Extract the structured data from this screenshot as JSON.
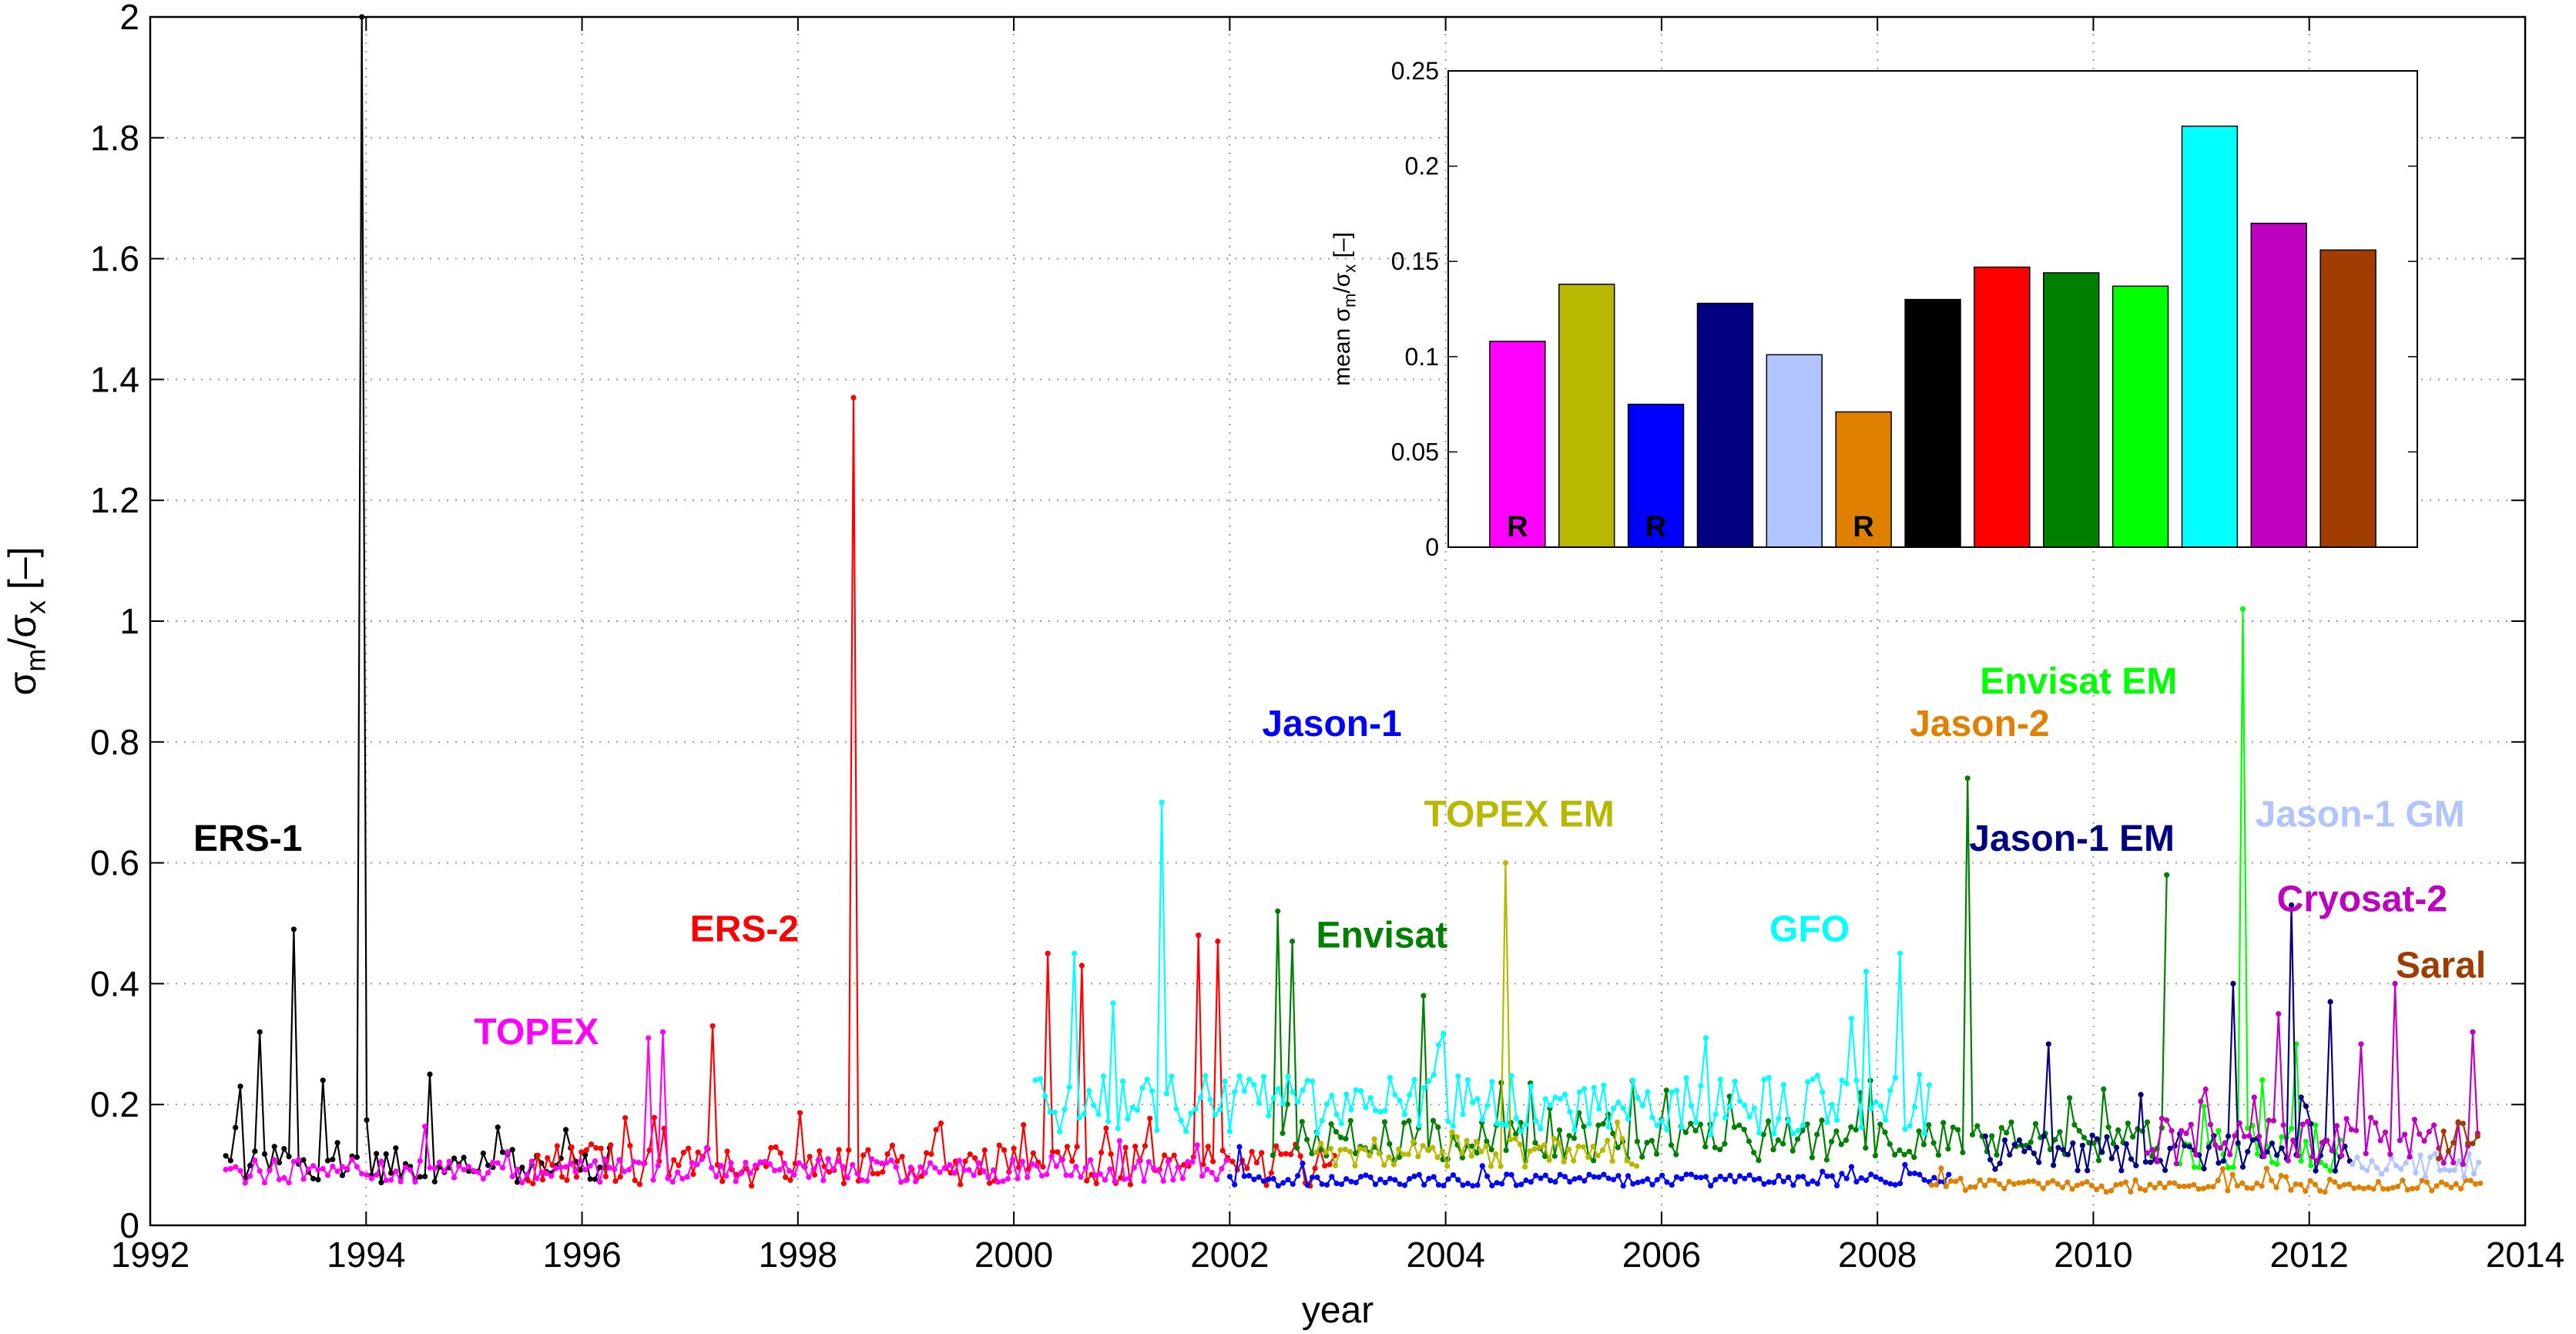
{
  "chart_data": [
    {
      "id": "main",
      "type": "line",
      "title": "",
      "xlabel": "year",
      "ylabel_parts": {
        "base": "σ",
        "sub1": "m",
        "slash": "/σ",
        "sub2": "x",
        "unit": " [–]"
      },
      "xlim": [
        1992,
        2014
      ],
      "ylim": [
        0,
        2
      ],
      "xticks": [
        1992,
        1994,
        1996,
        1998,
        2000,
        2002,
        2004,
        2006,
        2008,
        2010,
        2012,
        2014
      ],
      "xtick_labels": [
        "1992",
        "1994",
        "1996",
        "1998",
        "2000",
        "2002",
        "2004",
        "2006",
        "2008",
        "2010",
        "2012",
        "2014"
      ],
      "yticks": [
        0,
        0.2,
        0.4,
        0.6,
        0.8,
        1,
        1.2,
        1.4,
        1.6,
        1.8,
        2
      ],
      "ytick_labels": [
        "0",
        "0.2",
        "0.4",
        "0.6",
        "0.8",
        "1",
        "1.2",
        "1.4",
        "1.6",
        "1.8",
        "2"
      ],
      "grid": true,
      "series": [
        {
          "name": "ERS-1",
          "color": "#000000",
          "start": 1992.7,
          "end": 1996.3,
          "baseline": 0.1,
          "noise": 0.03,
          "spikes": [
            [
              1992.85,
              0.23
            ],
            [
              1993.0,
              0.32
            ],
            [
              1993.35,
              0.49
            ],
            [
              1993.6,
              0.24
            ],
            [
              1993.95,
              2.0
            ],
            [
              1994.6,
              0.25
            ]
          ]
        },
        {
          "name": "ERS-2",
          "color": "#ff0000",
          "start": 1995.5,
          "end": 2003.0,
          "baseline": 0.1,
          "noise": 0.035,
          "spikes": [
            [
              1997.2,
              0.33
            ],
            [
              1998.5,
              1.37
            ],
            [
              2000.3,
              0.45
            ],
            [
              2000.65,
              0.43
            ],
            [
              2001.7,
              0.48
            ],
            [
              2001.9,
              0.47
            ]
          ]
        },
        {
          "name": "TOPEX",
          "color": "#ff00ff",
          "start": 1992.7,
          "end": 2002.0,
          "baseline": 0.09,
          "noise": 0.02,
          "spikes": [
            [
              1996.6,
              0.31
            ],
            [
              1996.75,
              0.32
            ]
          ]
        },
        {
          "name": "Jason-1",
          "color": "#0000ff",
          "start": 2002.0,
          "end": 2008.7,
          "baseline": 0.075,
          "noise": 0.01,
          "spikes": [
            [
              2002.1,
              0.13
            ]
          ]
        },
        {
          "name": "Envisat",
          "color": "#008000",
          "start": 2002.4,
          "end": 2010.7,
          "baseline": 0.14,
          "noise": 0.035,
          "spikes": [
            [
              2002.45,
              0.52
            ],
            [
              2002.6,
              0.47
            ],
            [
              2003.8,
              0.38
            ],
            [
              2008.85,
              0.74
            ],
            [
              2010.7,
              0.58
            ]
          ]
        },
        {
          "name": "TOPEX EM",
          "color": "#b8b800",
          "start": 2002.8,
          "end": 2005.8,
          "baseline": 0.12,
          "noise": 0.025,
          "spikes": [
            [
              2004.55,
              0.6
            ]
          ]
        },
        {
          "name": "GFO",
          "color": "#00ffff",
          "start": 2000.2,
          "end": 2008.5,
          "baseline": 0.2,
          "noise": 0.05,
          "spikes": [
            [
              2000.55,
              0.45
            ],
            [
              2001.35,
              0.7
            ],
            [
              2007.9,
              0.42
            ],
            [
              2008.2,
              0.45
            ]
          ]
        },
        {
          "name": "Jason-2",
          "color": "#e08000",
          "start": 2008.5,
          "end": 2013.6,
          "baseline": 0.065,
          "noise": 0.01,
          "spikes": []
        },
        {
          "name": "Envisat EM",
          "color": "#00ff00",
          "start": 2010.8,
          "end": 2012.3,
          "baseline": 0.13,
          "noise": 0.04,
          "spikes": [
            [
              2011.4,
              1.02
            ],
            [
              2011.9,
              0.3
            ]
          ]
        },
        {
          "name": "Jason-1 EM",
          "color": "#000080",
          "start": 2009.0,
          "end": 2012.4,
          "baseline": 0.12,
          "noise": 0.03,
          "spikes": [
            [
              2009.6,
              0.3
            ],
            [
              2011.3,
              0.4
            ],
            [
              2011.85,
              0.53
            ],
            [
              2012.2,
              0.37
            ]
          ]
        },
        {
          "name": "Jason-1 GM",
          "color": "#b0c4ff",
          "start": 2012.4,
          "end": 2013.6,
          "baseline": 0.1,
          "noise": 0.02,
          "spikes": []
        },
        {
          "name": "Cryosat-2",
          "color": "#c000c0",
          "start": 2010.5,
          "end": 2013.6,
          "baseline": 0.14,
          "noise": 0.04,
          "spikes": [
            [
              2011.7,
              0.35
            ],
            [
              2012.5,
              0.3
            ],
            [
              2012.8,
              0.4
            ],
            [
              2013.5,
              0.32
            ]
          ]
        },
        {
          "name": "Saral",
          "color": "#a03c00",
          "start": 2013.2,
          "end": 2013.6,
          "baseline": 0.14,
          "noise": 0.03,
          "spikes": []
        }
      ],
      "annotations": [
        {
          "text": "ERS-1",
          "color": "#000000",
          "x": 1992.4,
          "y": 0.62
        },
        {
          "text": "TOPEX",
          "color": "#ff00ff",
          "x": 1995.0,
          "y": 0.3
        },
        {
          "text": "ERS-2",
          "color": "#ff0000",
          "x": 1997.0,
          "y": 0.47
        },
        {
          "text": "Jason-1",
          "color": "#0000ff",
          "x": 2002.3,
          "y": 0.81
        },
        {
          "text": "Envisat",
          "color": "#008000",
          "x": 2002.8,
          "y": 0.46
        },
        {
          "text": "TOPEX EM",
          "color": "#b8b800",
          "x": 2003.8,
          "y": 0.66
        },
        {
          "text": "GFO",
          "color": "#00ffff",
          "x": 2007.0,
          "y": 0.47
        },
        {
          "text": "Jason-2",
          "color": "#e08000",
          "x": 2008.3,
          "y": 0.81
        },
        {
          "text": "Envisat EM",
          "color": "#00ff00",
          "x": 2008.95,
          "y": 0.88
        },
        {
          "text": "Jason-1 EM",
          "color": "#000080",
          "x": 2008.85,
          "y": 0.62
        },
        {
          "text": "Jason-1 GM",
          "color": "#b0c4ff",
          "x": 2011.5,
          "y": 0.66
        },
        {
          "text": "Cryosat-2",
          "color": "#c000c0",
          "x": 2011.7,
          "y": 0.52
        },
        {
          "text": "Saral",
          "color": "#a03c00",
          "x": 2012.8,
          "y": 0.41
        }
      ]
    },
    {
      "id": "inset",
      "type": "bar",
      "ylabel_parts": {
        "base": "mean σ",
        "sub1": "m",
        "slash": "/σ",
        "sub2": "x",
        "unit": " [–]"
      },
      "ylim": [
        0,
        0.25
      ],
      "yticks": [
        0,
        0.05,
        0.1,
        0.15,
        0.2,
        0.25
      ],
      "ytick_labels": [
        "0",
        "0.05",
        "0.1",
        "0.15",
        "0.2",
        "0.25"
      ],
      "values": [
        0.108,
        0.138,
        0.075,
        0.128,
        0.101,
        0.071,
        0.13,
        0.147,
        0.144,
        0.137,
        0.221,
        0.17,
        0.156
      ],
      "colors": [
        "#ff00ff",
        "#b8b800",
        "#0000ff",
        "#000080",
        "#b0c4ff",
        "#e08000",
        "#000000",
        "#ff0000",
        "#008000",
        "#00ff00",
        "#00ffff",
        "#c000c0",
        "#a03c00"
      ],
      "bar_labels": [
        "R",
        "",
        "R",
        "",
        "",
        "R",
        "",
        "",
        "",
        "",
        "",
        "",
        ""
      ],
      "bar_label_colors": [
        "#000000",
        "#000000",
        "#ffffff",
        "#000000",
        "#000000",
        "#000000",
        "#000000",
        "#000000",
        "#000000",
        "#000000",
        "#000000",
        "#000000",
        "#000000"
      ]
    }
  ]
}
